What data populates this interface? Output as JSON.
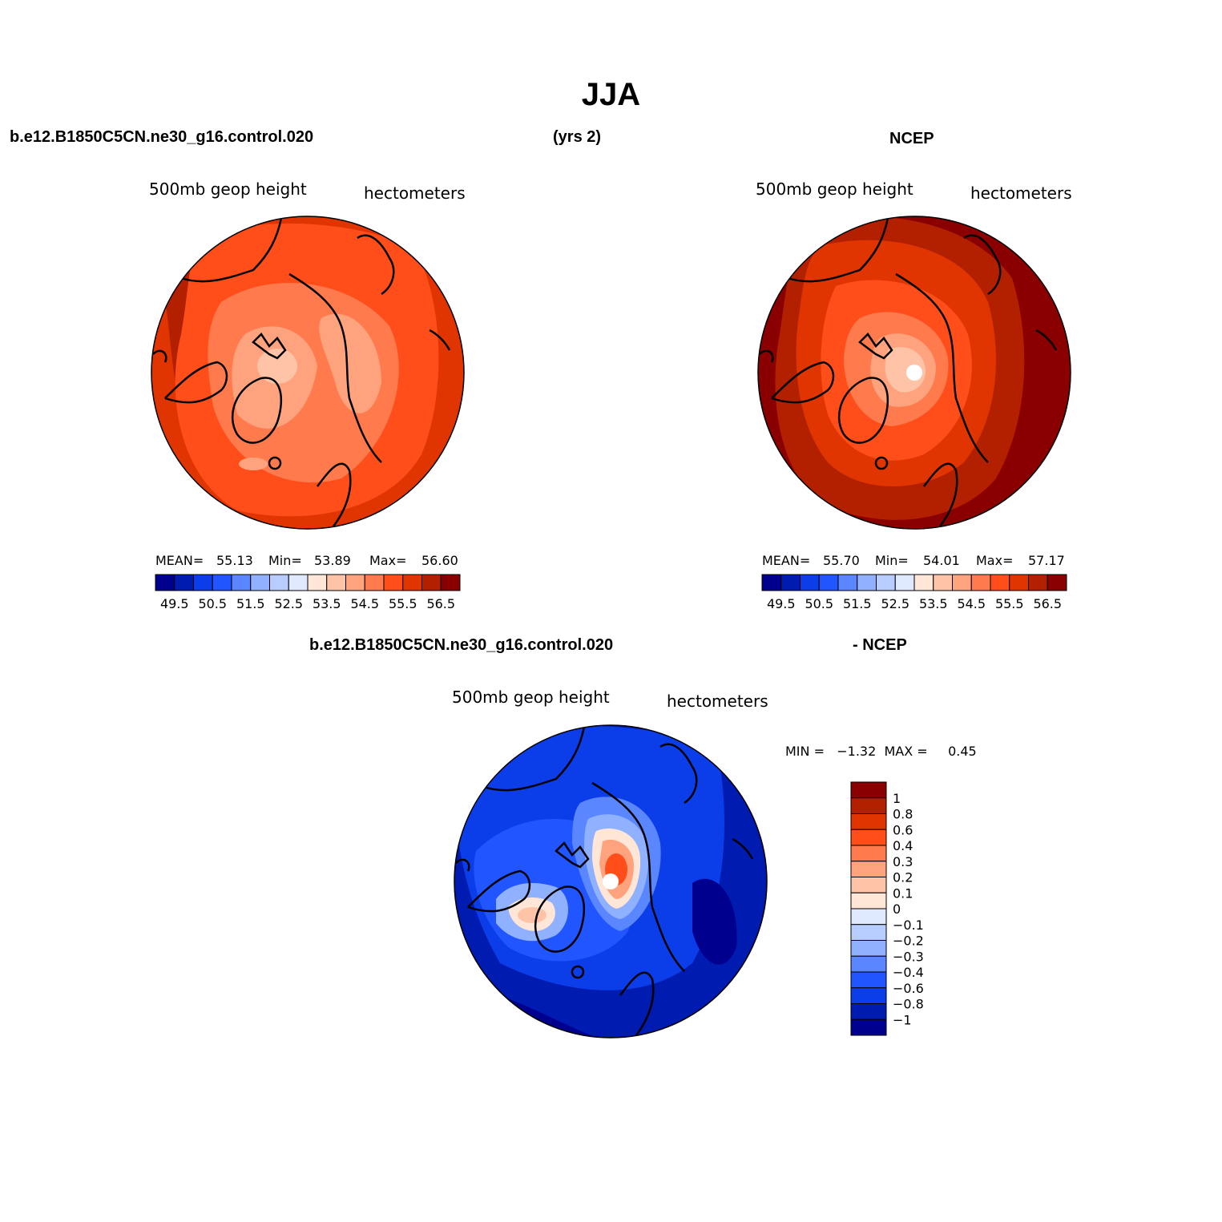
{
  "figure": {
    "title": "JJA",
    "case_name": "b.e12.B1850C5CN.ne30_g16.control.020",
    "years": "(yrs 2)",
    "obs_name": "NCEP",
    "diff_case_name": "b.e12.B1850C5CN.ne30_g16.control.020",
    "diff_obs_name": "- NCEP"
  },
  "panels": {
    "model": {
      "variable_label": "500mb geop height",
      "units_label": "hectometers",
      "mean_label": "MEAN=",
      "mean": "55.13",
      "min_label": "Min=",
      "min": "53.89",
      "max_label": "Max=",
      "max": "56.60"
    },
    "obs": {
      "variable_label": "500mb geop height",
      "units_label": "hectometers",
      "mean_label": "MEAN=",
      "mean": "55.70",
      "min_label": "Min=",
      "min": "54.01",
      "max_label": "Max=",
      "max": "57.17"
    },
    "diff": {
      "variable_label": "500mb geop height",
      "units_label": "hectometers",
      "minmax_text": "MIN =   −1.32  MAX =     0.45"
    }
  },
  "colorbar_main": {
    "colors": [
      "#00008f",
      "#001bb0",
      "#0b3ee8",
      "#2155ff",
      "#5a86ff",
      "#8fb1ff",
      "#b7cdff",
      "#dfe9ff",
      "#ffe6d6",
      "#ffc4a8",
      "#ffa37e",
      "#ff7a4d",
      "#ff4e1a",
      "#e03500",
      "#b32000",
      "#8a0000"
    ],
    "tick_labels": [
      "49.5",
      "50.5",
      "51.5",
      "52.5",
      "53.5",
      "54.5",
      "55.5",
      "56.5"
    ]
  },
  "colorbar_diff": {
    "colors_top_to_bottom": [
      "#8a0000",
      "#b32000",
      "#e03500",
      "#ff4e1a",
      "#ff7a4d",
      "#ffa37e",
      "#ffc4a8",
      "#ffe6d6",
      "#dfe9ff",
      "#b7cdff",
      "#8fb1ff",
      "#5a86ff",
      "#2155ff",
      "#0b3ee8",
      "#001bb0",
      "#00008f"
    ],
    "tick_labels": [
      "1",
      "0.8",
      "0.6",
      "0.4",
      "0.3",
      "0.2",
      "0.1",
      "0",
      "−0.1",
      "−0.2",
      "−0.3",
      "−0.4",
      "−0.6",
      "−0.8",
      "−1"
    ]
  }
}
